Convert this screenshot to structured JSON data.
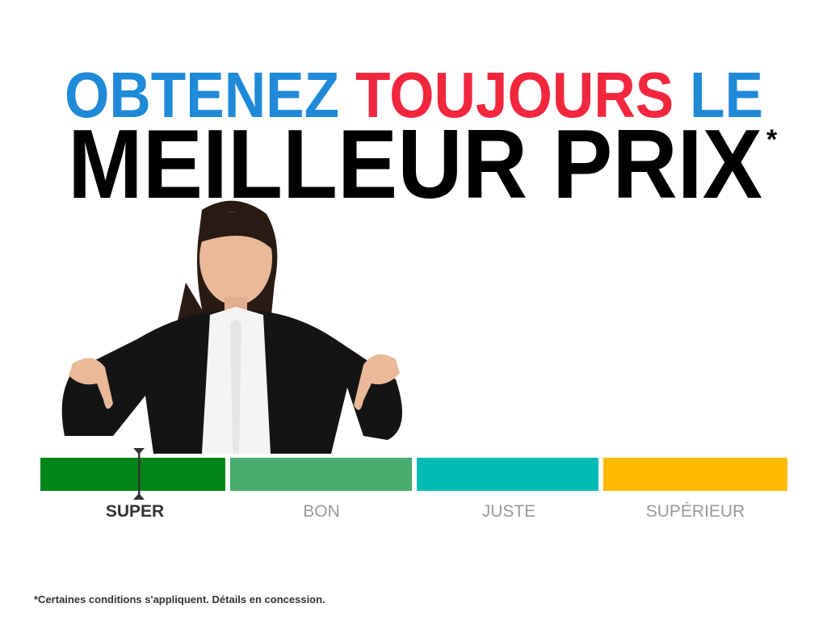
{
  "headline": {
    "line1": [
      {
        "text": "OBTENEZ",
        "color": "#1f8ad8"
      },
      {
        "text": "TOUJOURS",
        "color": "#f2273d"
      },
      {
        "text": "LE",
        "color": "#1f8ad8"
      }
    ],
    "line2": "MEILLEUR PRIX",
    "asterisk": "*"
  },
  "scale": {
    "segments": [
      {
        "label": "SUPER",
        "color": "#008418",
        "active": true
      },
      {
        "label": "BON",
        "color": "#47ad6e",
        "active": false
      },
      {
        "label": "JUSTE",
        "color": "#00bdb4",
        "active": false
      },
      {
        "label": "SUPÉRIEUR",
        "color": "#ffbb00",
        "active": false
      }
    ],
    "marker_segment": "SUPER"
  },
  "footnote": "*Certaines conditions s'appliquent. Détails en concession."
}
